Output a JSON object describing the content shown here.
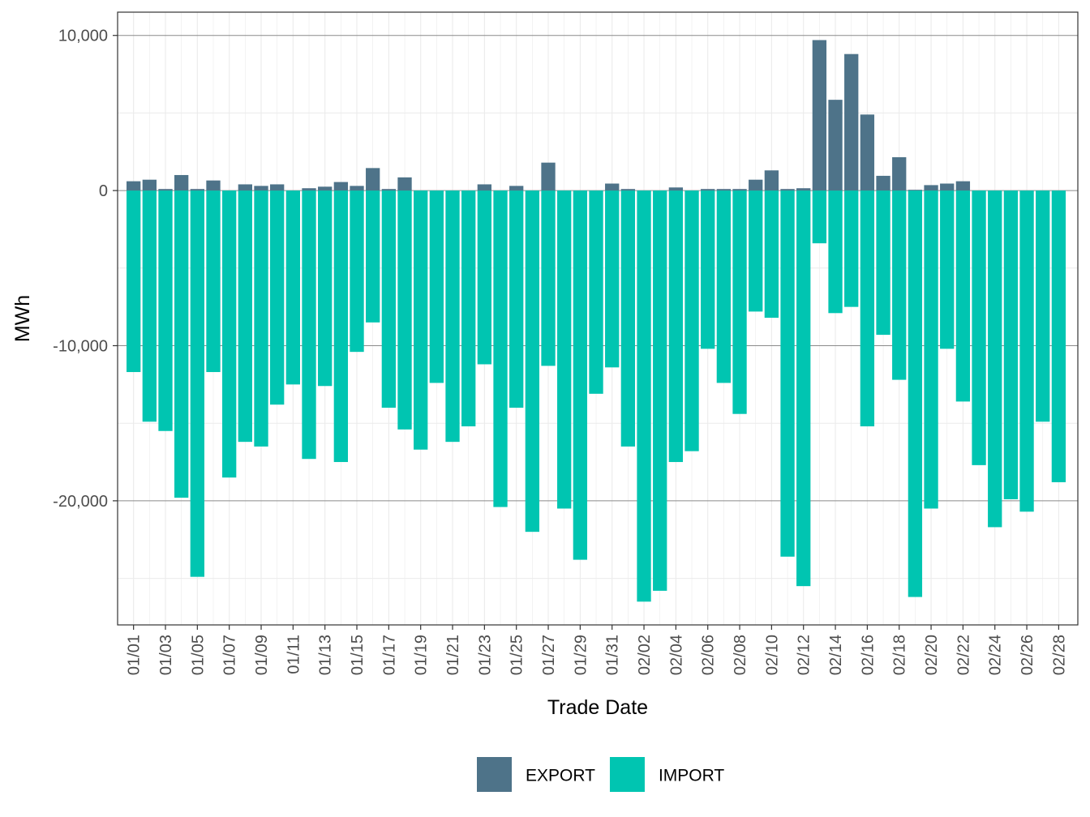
{
  "chart_data": {
    "type": "bar",
    "stacked": true,
    "title": "",
    "xlabel": "Trade Date",
    "ylabel": "MWh",
    "ylim": [
      -28000,
      11500
    ],
    "yticks": [
      10000,
      0,
      -10000,
      -20000
    ],
    "ytick_labels": [
      "10,000",
      "0",
      "-10,000",
      "-20,000"
    ],
    "grid": true,
    "legend_position": "bottom",
    "categories": [
      "01/01",
      "01/02",
      "01/03",
      "01/04",
      "01/05",
      "01/06",
      "01/07",
      "01/08",
      "01/09",
      "01/10",
      "01/11",
      "01/12",
      "01/13",
      "01/14",
      "01/15",
      "01/16",
      "01/17",
      "01/18",
      "01/19",
      "01/20",
      "01/21",
      "01/22",
      "01/23",
      "01/24",
      "01/25",
      "01/26",
      "01/27",
      "01/28",
      "01/29",
      "01/30",
      "01/31",
      "02/01",
      "02/02",
      "02/03",
      "02/04",
      "02/05",
      "02/06",
      "02/07",
      "02/08",
      "02/09",
      "02/10",
      "02/11",
      "02/12",
      "02/13",
      "02/14",
      "02/15",
      "02/16",
      "02/17",
      "02/18",
      "02/19",
      "02/20",
      "02/21",
      "02/22",
      "02/23",
      "02/24",
      "02/25",
      "02/26",
      "02/27",
      "02/28"
    ],
    "xtick_labels": [
      "01/01",
      "01/03",
      "01/05",
      "01/07",
      "01/09",
      "01/11",
      "01/13",
      "01/15",
      "01/17",
      "01/19",
      "01/21",
      "01/23",
      "01/25",
      "01/27",
      "01/29",
      "01/31",
      "02/02",
      "02/04",
      "02/06",
      "02/08",
      "02/10",
      "02/12",
      "02/14",
      "02/16",
      "02/18",
      "02/20",
      "02/22",
      "02/24",
      "02/26",
      "02/28"
    ],
    "series": [
      {
        "name": "EXPORT",
        "color": "#4e7389",
        "values": [
          600,
          700,
          100,
          1000,
          100,
          650,
          0,
          400,
          300,
          400,
          0,
          150,
          250,
          550,
          300,
          1450,
          100,
          850,
          0,
          0,
          0,
          0,
          400,
          0,
          300,
          0,
          1800,
          0,
          0,
          0,
          450,
          100,
          0,
          0,
          200,
          0,
          100,
          100,
          100,
          700,
          1300,
          100,
          150,
          9700,
          5850,
          8800,
          4900,
          950,
          2150,
          50,
          350,
          450,
          600,
          0,
          0,
          0,
          0,
          0,
          0
        ]
      },
      {
        "name": "IMPORT",
        "color": "#00c5b1",
        "values": [
          -11700,
          -14900,
          -15500,
          -19800,
          -24900,
          -11700,
          -18500,
          -16200,
          -16500,
          -13800,
          -12500,
          -17300,
          -12600,
          -17500,
          -10400,
          -8500,
          -14000,
          -15400,
          -16700,
          -12400,
          -16200,
          -15200,
          -11200,
          -20400,
          -14000,
          -22000,
          -11300,
          -20500,
          -23800,
          -13100,
          -11400,
          -16500,
          -26500,
          -25800,
          -17500,
          -16800,
          -10200,
          -12400,
          -14400,
          -7800,
          -8200,
          -23600,
          -25500,
          -3400,
          -7900,
          -7500,
          -15200,
          -9300,
          -12200,
          -26200,
          -20500,
          -10200,
          -13600,
          -17700,
          -21700,
          -19900,
          -20700,
          -14900,
          -18800
        ]
      }
    ]
  }
}
